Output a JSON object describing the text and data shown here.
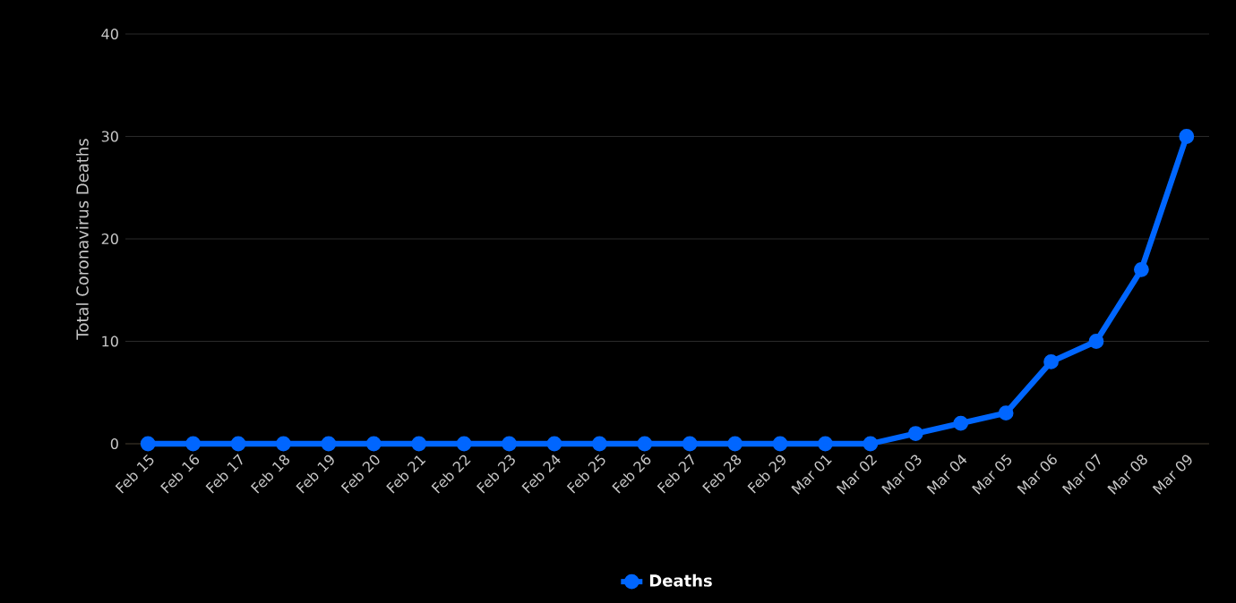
{
  "chart_data": {
    "type": "line",
    "ylabel": "Total Coronavirus Deaths",
    "categories": [
      "Feb 15",
      "Feb 16",
      "Feb 17",
      "Feb 18",
      "Feb 19",
      "Feb 20",
      "Feb 21",
      "Feb 22",
      "Feb 23",
      "Feb 24",
      "Feb 25",
      "Feb 26",
      "Feb 27",
      "Feb 28",
      "Feb 29",
      "Mar 01",
      "Mar 02",
      "Mar 03",
      "Mar 04",
      "Mar 05",
      "Mar 06",
      "Mar 07",
      "Mar 08",
      "Mar 09"
    ],
    "series": [
      {
        "name": "Deaths",
        "color": "#0066ff",
        "values": [
          0,
          0,
          0,
          0,
          0,
          0,
          0,
          0,
          0,
          0,
          0,
          0,
          0,
          0,
          0,
          0,
          0,
          1,
          2,
          3,
          8,
          10,
          17,
          30
        ]
      }
    ],
    "ylim": [
      0,
      40
    ],
    "yticks": [
      0,
      10,
      20,
      30,
      40
    ],
    "grid": "y",
    "legend": "bottom",
    "marker": "circle"
  }
}
